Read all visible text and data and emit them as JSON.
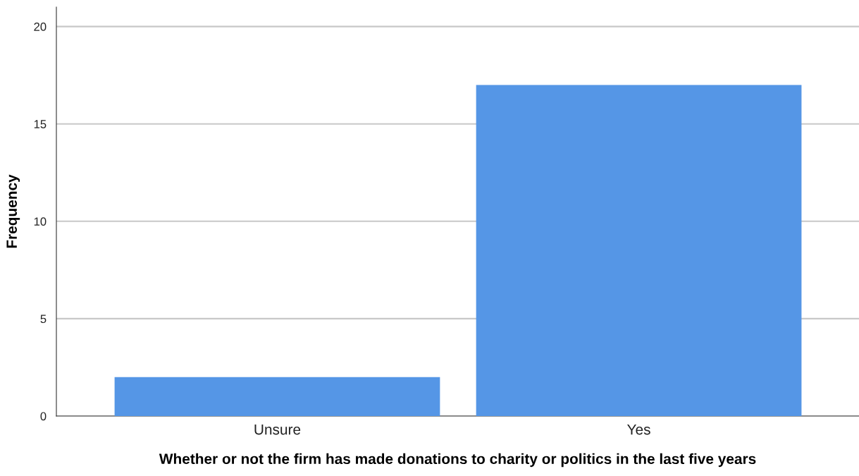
{
  "chart_data": {
    "type": "bar",
    "xlabel": "Whether or not the firm has made donations to charity or politics in the last five years",
    "ylabel": "Frequency",
    "categories": [
      "Unsure",
      "Yes"
    ],
    "values": [
      2,
      17
    ],
    "color": "#5596e6",
    "ylim": [
      0,
      21
    ],
    "yticks": [
      0,
      5,
      10,
      15,
      20
    ],
    "grid": "y",
    "legend": false
  }
}
